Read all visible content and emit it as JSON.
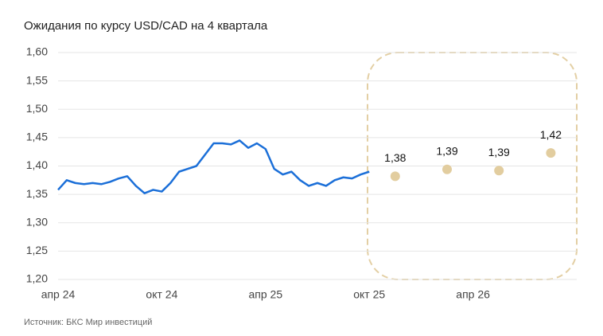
{
  "chart_data": {
    "type": "line",
    "title": "Ожидания по курсу USD/CAD на 4 квартала",
    "source": "Источник: БКС Мир инвестиций",
    "categories": [
      "апр 24",
      null,
      null,
      null,
      null,
      null,
      null,
      null,
      null,
      null,
      null,
      null,
      "окт 24",
      null,
      null,
      null,
      null,
      null,
      null,
      null,
      null,
      null,
      null,
      null,
      "апр 25",
      null,
      null,
      null,
      null,
      null,
      null,
      null,
      null,
      null,
      null,
      null,
      "окт 25",
      null,
      null,
      null,
      null,
      null,
      null,
      null,
      null,
      null,
      null,
      null,
      "апр 26",
      null,
      null,
      null,
      null,
      null,
      null,
      null,
      null,
      null,
      null,
      null,
      null
    ],
    "ylim": [
      1.2,
      1.6
    ],
    "yticks": [
      {
        "value": 1.2,
        "label": "1,20"
      },
      {
        "value": 1.25,
        "label": "1,25"
      },
      {
        "value": 1.3,
        "label": "1,30"
      },
      {
        "value": 1.35,
        "label": "1,35"
      },
      {
        "value": 1.4,
        "label": "1,40"
      },
      {
        "value": 1.45,
        "label": "1,45"
      },
      {
        "value": 1.5,
        "label": "1,50"
      },
      {
        "value": 1.55,
        "label": "1,55"
      },
      {
        "value": 1.6,
        "label": "1,60"
      }
    ],
    "grid": true,
    "series": [
      {
        "type": "line",
        "color": "#1b6fd8",
        "values": [
          1.358,
          1.375,
          1.37,
          1.368,
          1.37,
          1.368,
          1.372,
          1.378,
          1.382,
          1.365,
          1.352,
          1.358,
          1.355,
          1.37,
          1.39,
          1.395,
          1.4,
          1.42,
          1.44,
          1.44,
          1.438,
          1.445,
          1.432,
          1.44,
          1.43,
          1.395,
          1.385,
          1.39,
          1.375,
          1.365,
          1.37,
          1.365,
          1.375,
          1.38,
          1.378,
          1.385,
          1.39,
          null,
          null,
          null,
          null,
          null,
          null,
          null,
          null,
          null,
          null,
          null,
          null,
          null,
          null,
          null,
          null,
          null,
          null,
          null,
          null,
          null,
          null,
          null,
          null
        ]
      },
      {
        "type": "scatter",
        "color": "#e2cd9f",
        "values": [
          null,
          null,
          null,
          null,
          null,
          null,
          null,
          null,
          null,
          null,
          null,
          null,
          null,
          null,
          null,
          null,
          null,
          null,
          null,
          null,
          null,
          null,
          null,
          null,
          null,
          null,
          null,
          null,
          null,
          null,
          null,
          null,
          null,
          null,
          null,
          null,
          null,
          null,
          null,
          1.382,
          null,
          null,
          null,
          null,
          null,
          1.394,
          null,
          null,
          null,
          null,
          null,
          1.392,
          null,
          null,
          null,
          null,
          null,
          1.423,
          null,
          null,
          null
        ],
        "value_labels": [
          null,
          null,
          null,
          null,
          null,
          null,
          null,
          null,
          null,
          null,
          null,
          null,
          null,
          null,
          null,
          null,
          null,
          null,
          null,
          null,
          null,
          null,
          null,
          null,
          null,
          null,
          null,
          null,
          null,
          null,
          null,
          null,
          null,
          null,
          null,
          null,
          null,
          null,
          null,
          "1,38",
          null,
          null,
          null,
          null,
          null,
          "1,39",
          null,
          null,
          null,
          null,
          null,
          "1,39",
          null,
          null,
          null,
          null,
          null,
          "1,42",
          null,
          null,
          null
        ]
      }
    ]
  }
}
